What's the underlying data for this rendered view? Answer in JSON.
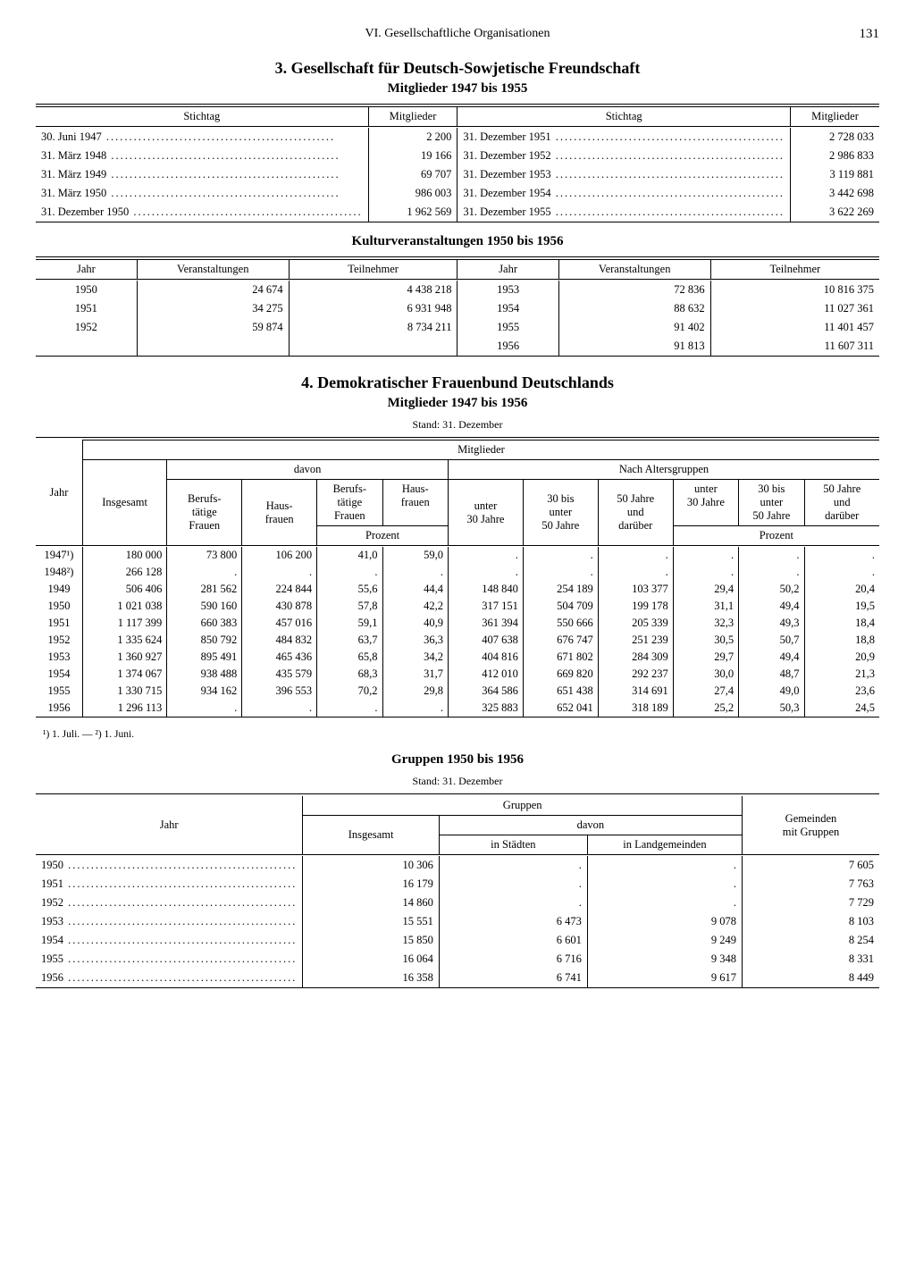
{
  "page": {
    "chapter": "VI. Gesellschaftliche Organisationen",
    "number": "131"
  },
  "sec3": {
    "title": "3. Gesellschaft für Deutsch-Sowjetische Freundschaft",
    "sub1": "Mitglieder 1947 bis 1955",
    "t1": {
      "h_stichtag": "Stichtag",
      "h_mitglieder": "Mitglieder",
      "left": [
        {
          "d": "30. Juni 1947",
          "m": "2 200"
        },
        {
          "d": "31. März 1948",
          "m": "19 166"
        },
        {
          "d": "31. März 1949",
          "m": "69 707"
        },
        {
          "d": "31. März 1950",
          "m": "986 003"
        },
        {
          "d": "31. Dezember 1950",
          "m": "1 962 569"
        }
      ],
      "right": [
        {
          "d": "31. Dezember 1951",
          "m": "2 728 033"
        },
        {
          "d": "31. Dezember 1952",
          "m": "2 986 833"
        },
        {
          "d": "31. Dezember 1953",
          "m": "3 119 881"
        },
        {
          "d": "31. Dezember 1954",
          "m": "3 442 698"
        },
        {
          "d": "31. Dezember 1955",
          "m": "3 622 269"
        }
      ]
    },
    "sub2": "Kulturveranstaltungen 1950 bis 1956",
    "t2": {
      "h_jahr": "Jahr",
      "h_ver": "Veranstaltungen",
      "h_teil": "Teilnehmer",
      "left": [
        {
          "j": "1950",
          "v": "24 674",
          "t": "4 438 218"
        },
        {
          "j": "1951",
          "v": "34 275",
          "t": "6 931 948"
        },
        {
          "j": "1952",
          "v": "59 874",
          "t": "8 734 211"
        }
      ],
      "right": [
        {
          "j": "1953",
          "v": "72 836",
          "t": "10 816 375"
        },
        {
          "j": "1954",
          "v": "88 632",
          "t": "11 027 361"
        },
        {
          "j": "1955",
          "v": "91 402",
          "t": "11 401 457"
        },
        {
          "j": "1956",
          "v": "91 813",
          "t": "11 607 311"
        }
      ]
    }
  },
  "sec4": {
    "title": "4. Demokratischer Frauenbund Deutschlands",
    "sub1": "Mitglieder 1947 bis 1956",
    "stand": "Stand: 31. Dezember",
    "t1": {
      "h_jahr": "Jahr",
      "h_mitglieder": "Mitglieder",
      "h_insg": "Insgesamt",
      "h_davon": "davon",
      "h_beruf": "Berufs-\ntätige\nFrauen",
      "h_haus": "Haus-\nfrauen",
      "h_prozent": "Prozent",
      "h_alters": "Nach Altersgruppen",
      "h_u30": "unter\n30 Jahre",
      "h_30_50": "30 bis\nunter\n50 Jahre",
      "h_50p": "50 Jahre\nund\ndarüber",
      "rows": [
        {
          "j": "1947¹)",
          "ins": "180 000",
          "bf": "73 800",
          "hf": "106 200",
          "bfp": "41,0",
          "hfp": "59,0",
          "a1": ".",
          "a2": ".",
          "a3": ".",
          "p1": ".",
          "p2": ".",
          "p3": "."
        },
        {
          "j": "1948²)",
          "ins": "266 128",
          "bf": ".",
          "hf": ".",
          "bfp": ".",
          "hfp": ".",
          "a1": ".",
          "a2": ".",
          "a3": ".",
          "p1": ".",
          "p2": ".",
          "p3": "."
        },
        {
          "j": "1949",
          "ins": "506 406",
          "bf": "281 562",
          "hf": "224 844",
          "bfp": "55,6",
          "hfp": "44,4",
          "a1": "148 840",
          "a2": "254 189",
          "a3": "103 377",
          "p1": "29,4",
          "p2": "50,2",
          "p3": "20,4"
        },
        {
          "j": "1950",
          "ins": "1 021 038",
          "bf": "590 160",
          "hf": "430 878",
          "bfp": "57,8",
          "hfp": "42,2",
          "a1": "317 151",
          "a2": "504 709",
          "a3": "199 178",
          "p1": "31,1",
          "p2": "49,4",
          "p3": "19,5"
        },
        {
          "j": "1951",
          "ins": "1 117 399",
          "bf": "660 383",
          "hf": "457 016",
          "bfp": "59,1",
          "hfp": "40,9",
          "a1": "361 394",
          "a2": "550 666",
          "a3": "205 339",
          "p1": "32,3",
          "p2": "49,3",
          "p3": "18,4"
        },
        {
          "j": "1952",
          "ins": "1 335 624",
          "bf": "850 792",
          "hf": "484 832",
          "bfp": "63,7",
          "hfp": "36,3",
          "a1": "407 638",
          "a2": "676 747",
          "a3": "251 239",
          "p1": "30,5",
          "p2": "50,7",
          "p3": "18,8"
        },
        {
          "j": "1953",
          "ins": "1 360 927",
          "bf": "895 491",
          "hf": "465 436",
          "bfp": "65,8",
          "hfp": "34,2",
          "a1": "404 816",
          "a2": "671 802",
          "a3": "284 309",
          "p1": "29,7",
          "p2": "49,4",
          "p3": "20,9"
        },
        {
          "j": "1954",
          "ins": "1 374 067",
          "bf": "938 488",
          "hf": "435 579",
          "bfp": "68,3",
          "hfp": "31,7",
          "a1": "412 010",
          "a2": "669 820",
          "a3": "292 237",
          "p1": "30,0",
          "p2": "48,7",
          "p3": "21,3"
        },
        {
          "j": "1955",
          "ins": "1 330 715",
          "bf": "934 162",
          "hf": "396 553",
          "bfp": "70,2",
          "hfp": "29,8",
          "a1": "364 586",
          "a2": "651 438",
          "a3": "314 691",
          "p1": "27,4",
          "p2": "49,0",
          "p3": "23,6"
        },
        {
          "j": "1956",
          "ins": "1 296 113",
          "bf": ".",
          "hf": ".",
          "bfp": ".",
          "hfp": ".",
          "a1": "325 883",
          "a2": "652 041",
          "a3": "318 189",
          "p1": "25,2",
          "p2": "50,3",
          "p3": "24,5"
        }
      ]
    },
    "footnote": "¹) 1. Juli. — ²) 1. Juni.",
    "sub2": "Gruppen 1950 bis 1956",
    "t2": {
      "h_jahr": "Jahr",
      "h_gruppen": "Gruppen",
      "h_insg": "Insgesamt",
      "h_davon": "davon",
      "h_stadt": "in Städten",
      "h_land": "in Landgemeinden",
      "h_gem": "Gemeinden\nmit Gruppen",
      "rows": [
        {
          "j": "1950",
          "ins": "10 306",
          "s": ".",
          "l": ".",
          "g": "7 605"
        },
        {
          "j": "1951",
          "ins": "16 179",
          "s": ".",
          "l": ".",
          "g": "7 763"
        },
        {
          "j": "1952",
          "ins": "14 860",
          "s": ".",
          "l": ".",
          "g": "7 729"
        },
        {
          "j": "1953",
          "ins": "15 551",
          "s": "6 473",
          "l": "9 078",
          "g": "8 103"
        },
        {
          "j": "1954",
          "ins": "15 850",
          "s": "6 601",
          "l": "9 249",
          "g": "8 254"
        },
        {
          "j": "1955",
          "ins": "16 064",
          "s": "6 716",
          "l": "9 348",
          "g": "8 331"
        },
        {
          "j": "1956",
          "ins": "16 358",
          "s": "6 741",
          "l": "9 617",
          "g": "8 449"
        }
      ]
    }
  }
}
